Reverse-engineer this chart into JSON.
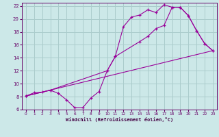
{
  "background_color": "#cce8e8",
  "grid_color": "#aacccc",
  "line_color": "#990099",
  "xlabel": "Windchill (Refroidissement éolien,°C)",
  "xlim": [
    -0.5,
    23.5
  ],
  "ylim": [
    6,
    22.5
  ],
  "xticks": [
    0,
    1,
    2,
    3,
    4,
    5,
    6,
    7,
    8,
    9,
    10,
    11,
    12,
    13,
    14,
    15,
    16,
    17,
    18,
    19,
    20,
    21,
    22,
    23
  ],
  "yticks": [
    6,
    8,
    10,
    12,
    14,
    16,
    18,
    20,
    22
  ],
  "line1_x": [
    0,
    1,
    2,
    3,
    4,
    5,
    6,
    7,
    8,
    9,
    10,
    11,
    12,
    13,
    14,
    15,
    16,
    17,
    18,
    19,
    20,
    21,
    22,
    23
  ],
  "line1_y": [
    8.1,
    8.6,
    8.7,
    9.0,
    8.5,
    7.5,
    6.3,
    6.3,
    7.8,
    8.8,
    12.0,
    14.2,
    18.8,
    20.3,
    20.6,
    21.4,
    21.0,
    22.2,
    21.8,
    21.8,
    20.5,
    18.2,
    16.2,
    15.1
  ],
  "line2_x": [
    0,
    3,
    10,
    11,
    14,
    15,
    16,
    17,
    18,
    19,
    20,
    21,
    22,
    23
  ],
  "line2_y": [
    8.1,
    9.0,
    12.0,
    14.2,
    16.5,
    17.3,
    18.5,
    19.0,
    21.8,
    21.8,
    20.5,
    18.2,
    16.2,
    15.1
  ],
  "line3_x": [
    0,
    23
  ],
  "line3_y": [
    8.1,
    15.1
  ]
}
